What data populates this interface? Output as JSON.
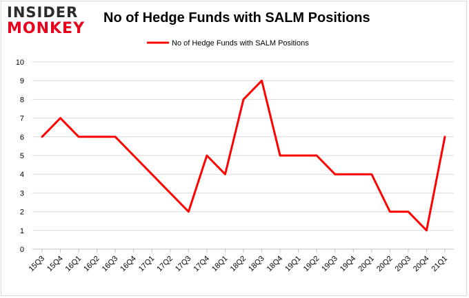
{
  "logo": {
    "line1": "INSIDER",
    "line2": "MONKEY"
  },
  "chart_data": {
    "type": "line",
    "title": "No of Hedge Funds with SALM Positions",
    "xlabel": "",
    "ylabel": "",
    "categories": [
      "15Q3",
      "15Q4",
      "16Q1",
      "16Q2",
      "16Q3",
      "16Q4",
      "17Q1",
      "17Q2",
      "17Q3",
      "17Q4",
      "18Q1",
      "18Q2",
      "18Q3",
      "18Q4",
      "19Q1",
      "19Q2",
      "19Q3",
      "19Q4",
      "20Q1",
      "20Q2",
      "20Q3",
      "20Q4",
      "21Q1"
    ],
    "series": [
      {
        "name": "No of Hedge Funds with SALM Positions",
        "color": "#ff0000",
        "values": [
          6,
          7,
          6,
          6,
          6,
          5,
          4,
          3,
          2,
          5,
          4,
          8,
          9,
          5,
          5,
          5,
          4,
          4,
          4,
          2,
          2,
          1,
          6
        ]
      }
    ],
    "ylim": [
      0,
      10
    ],
    "yticks": [
      0,
      1,
      2,
      3,
      4,
      5,
      6,
      7,
      8,
      9,
      10
    ],
    "grid": true,
    "legend": "top-center"
  }
}
